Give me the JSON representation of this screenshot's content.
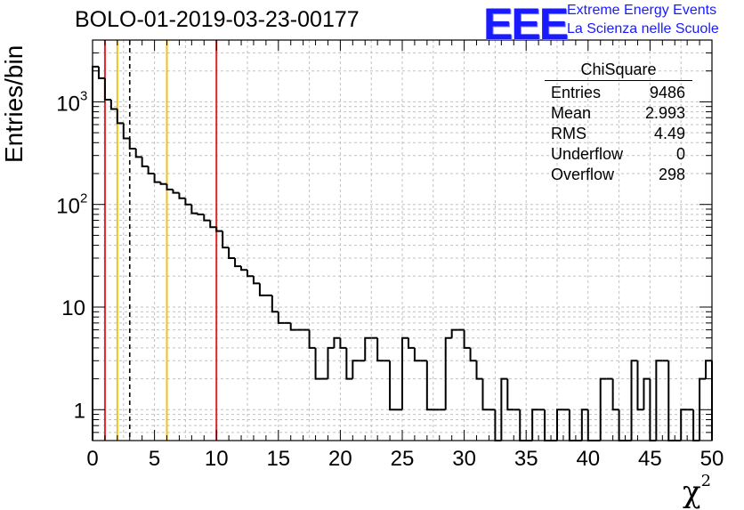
{
  "title": "BOLO-01-2019-03-23-00177",
  "logo": {
    "mark": "EEE",
    "line1": "Extreme Energy Events",
    "line2": "La Scienza nelle Scuole",
    "color": "#1a1aff"
  },
  "stats_box": {
    "title": "ChiSquare",
    "rows": [
      {
        "label": "Entries",
        "value": "9486"
      },
      {
        "label": "Mean",
        "value": "2.993"
      },
      {
        "label": "RMS",
        "value": "4.49"
      },
      {
        "label": "Underflow",
        "value": "0"
      },
      {
        "label": "Overflow",
        "value": "298"
      }
    ]
  },
  "chart_data": {
    "type": "histogram",
    "title": "BOLO-01-2019-03-23-00177",
    "xlabel": "χ",
    "xlabel_superscript": "2",
    "ylabel": "Entries/bin",
    "xlim": [
      0,
      50
    ],
    "ylim": [
      0.5,
      4000
    ],
    "y_scale": "log",
    "grid": true,
    "bin_width": 0.5,
    "x_ticks": [
      "0",
      "5",
      "10",
      "15",
      "20",
      "25",
      "30",
      "35",
      "40",
      "45",
      "50"
    ],
    "y_ticks": [
      {
        "value": 1,
        "label": "1"
      },
      {
        "value": 10,
        "label": "10"
      },
      {
        "value": 100,
        "label": "10",
        "exponent": "2"
      },
      {
        "value": 1000,
        "label": "10",
        "exponent": "3"
      }
    ],
    "counts": [
      2200,
      1700,
      1050,
      850,
      620,
      440,
      350,
      290,
      235,
      200,
      165,
      158,
      140,
      130,
      115,
      100,
      82,
      80,
      70,
      60,
      55,
      38,
      30,
      25,
      23,
      20,
      17,
      13,
      13,
      9,
      7,
      7,
      6,
      6,
      6,
      4,
      2,
      2,
      4,
      5,
      4,
      2,
      3,
      3,
      5,
      5,
      3,
      3,
      1,
      1,
      5,
      4,
      3,
      3,
      1,
      1,
      1,
      5,
      6,
      6,
      4,
      3,
      2,
      1,
      1,
      0,
      2,
      1,
      1,
      0,
      0,
      1,
      1,
      0,
      0,
      1,
      1,
      0,
      0,
      1,
      0,
      0,
      2,
      2,
      1,
      0,
      0,
      3,
      1,
      2,
      0,
      3,
      3,
      0,
      0,
      1,
      1,
      0,
      2,
      3
    ],
    "vertical_lines": [
      {
        "x": 1,
        "color": "#e8202a",
        "style": "solid"
      },
      {
        "x": 2,
        "color": "#f2c21c",
        "style": "solid"
      },
      {
        "x": 3,
        "color": "#000000",
        "style": "dashed"
      },
      {
        "x": 6,
        "color": "#f2c21c",
        "style": "solid"
      },
      {
        "x": 10,
        "color": "#e8202a",
        "style": "solid"
      }
    ]
  }
}
